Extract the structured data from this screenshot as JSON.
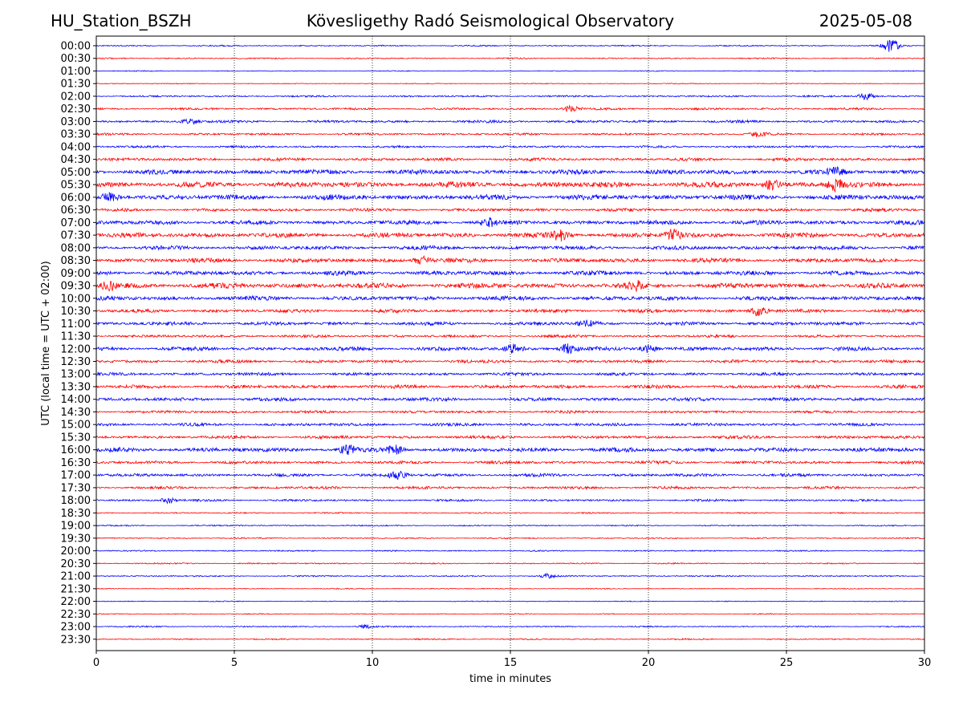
{
  "header": {
    "station": "HU_Station_BSZH",
    "observatory": "Kövesligethy Radó Seismological Observatory",
    "date": "2025-05-08"
  },
  "colors": {
    "even_trace": "#0000ff",
    "odd_trace": "#ff0000",
    "axes": "#000000",
    "grid": "#000000"
  },
  "chart_data": {
    "type": "line",
    "title": "",
    "xlabel": "time in minutes",
    "ylabel": "UTC (local time = UTC + 02:00)",
    "xlim": [
      0,
      30
    ],
    "xticks": [
      "0",
      "5",
      "10",
      "15",
      "20",
      "25",
      "30"
    ],
    "grid": "vertical dotted lines at 5-minute intervals",
    "rows": [
      "00:00",
      "00:30",
      "01:00",
      "01:30",
      "02:00",
      "02:30",
      "03:00",
      "03:30",
      "04:00",
      "04:30",
      "05:00",
      "05:30",
      "06:00",
      "06:30",
      "07:00",
      "07:30",
      "08:00",
      "08:30",
      "09:00",
      "09:30",
      "10:00",
      "10:30",
      "11:00",
      "11:30",
      "12:00",
      "12:30",
      "13:00",
      "13:30",
      "14:00",
      "14:30",
      "15:00",
      "15:30",
      "16:00",
      "16:30",
      "17:00",
      "17:30",
      "18:00",
      "18:30",
      "19:00",
      "19:30",
      "20:00",
      "20:30",
      "21:00",
      "21:30",
      "22:00",
      "22:30",
      "23:00",
      "23:30"
    ],
    "row_activity": [
      0.3,
      0.3,
      0.2,
      0.2,
      0.4,
      0.5,
      0.6,
      0.5,
      0.5,
      0.7,
      1.1,
      1.3,
      1.2,
      0.7,
      1.0,
      1.1,
      0.9,
      1.0,
      1.0,
      1.2,
      1.0,
      0.8,
      0.8,
      0.6,
      0.9,
      0.7,
      0.7,
      0.8,
      0.8,
      0.6,
      0.7,
      0.7,
      1.0,
      0.7,
      0.7,
      0.6,
      0.5,
      0.3,
      0.3,
      0.3,
      0.3,
      0.3,
      0.3,
      0.2,
      0.2,
      0.2,
      0.3,
      0.3
    ],
    "events": [
      {
        "row": "00:00",
        "minute": 28.8,
        "amp": 3.5
      },
      {
        "row": "02:00",
        "minute": 27.9,
        "amp": 1.8
      },
      {
        "row": "02:30",
        "minute": 17.2,
        "amp": 1.7
      },
      {
        "row": "03:00",
        "minute": 3.4,
        "amp": 1.6
      },
      {
        "row": "03:30",
        "minute": 24.0,
        "amp": 1.4
      },
      {
        "row": "05:00",
        "minute": 26.8,
        "amp": 2.0
      },
      {
        "row": "05:30",
        "minute": 24.5,
        "amp": 2.6
      },
      {
        "row": "05:30",
        "minute": 26.8,
        "amp": 3.0
      },
      {
        "row": "06:00",
        "minute": 0.5,
        "amp": 2.0
      },
      {
        "row": "07:00",
        "minute": 14.2,
        "amp": 2.0
      },
      {
        "row": "07:30",
        "minute": 16.8,
        "amp": 2.8
      },
      {
        "row": "07:30",
        "minute": 20.9,
        "amp": 2.8
      },
      {
        "row": "08:30",
        "minute": 11.8,
        "amp": 1.8
      },
      {
        "row": "09:30",
        "minute": 19.6,
        "amp": 2.6
      },
      {
        "row": "09:30",
        "minute": 0.5,
        "amp": 2.0
      },
      {
        "row": "10:30",
        "minute": 24.0,
        "amp": 2.6
      },
      {
        "row": "11:00",
        "minute": 17.8,
        "amp": 2.4
      },
      {
        "row": "12:00",
        "minute": 17.1,
        "amp": 2.4
      },
      {
        "row": "12:00",
        "minute": 15.1,
        "amp": 2.2
      },
      {
        "row": "12:00",
        "minute": 20.0,
        "amp": 2.0
      },
      {
        "row": "16:00",
        "minute": 9.1,
        "amp": 2.2
      },
      {
        "row": "16:00",
        "minute": 10.8,
        "amp": 2.2
      },
      {
        "row": "17:00",
        "minute": 10.9,
        "amp": 2.2
      },
      {
        "row": "18:00",
        "minute": 2.6,
        "amp": 1.4
      },
      {
        "row": "21:00",
        "minute": 16.3,
        "amp": 1.2
      },
      {
        "row": "23:00",
        "minute": 9.8,
        "amp": 1.0
      }
    ]
  }
}
